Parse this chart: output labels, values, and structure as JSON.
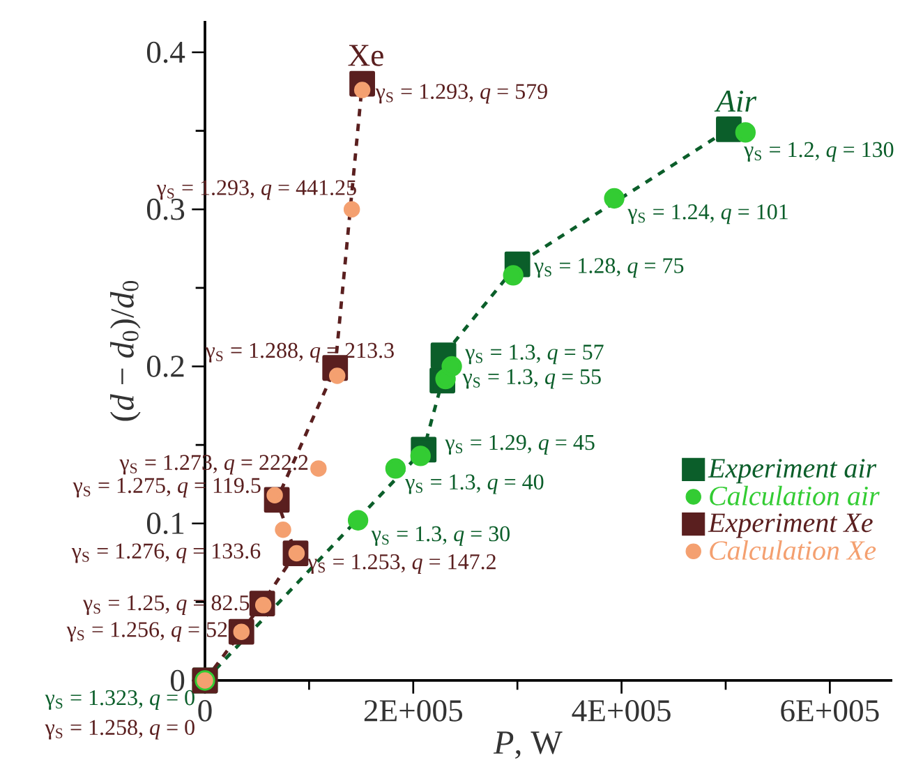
{
  "chart_data": {
    "type": "scatter",
    "xlabel": "*P*, W",
    "ylabel": "(*d* − *d*$_{0}$)/*d*$_{0}$",
    "xlim": [
      0,
      660000
    ],
    "ylim": [
      0,
      0.42
    ],
    "xticks": [
      0,
      {
        "value": 200000,
        "label": "2E+005"
      },
      {
        "value": 400000,
        "label": "4E+005"
      },
      {
        "value": 600000,
        "label": "6E+005"
      }
    ],
    "yticks": [
      0,
      0.1,
      0.2,
      0.3,
      0.4
    ],
    "legend": "right",
    "grid": false,
    "annotations": [
      "Xe",
      "Air"
    ],
    "series": [
      {
        "name": "Experiment air",
        "color": "#0b5e2a",
        "marker": "square",
        "line_style": "dashed",
        "x": [
          0,
          210000,
          228000,
          229000,
          300000,
          503000
        ],
        "values": [
          0,
          0.147,
          0.191,
          0.207,
          0.265,
          0.351
        ]
      },
      {
        "name": "Calculation air",
        "color": "#33cc33",
        "marker": "circle",
        "line_style": "none",
        "x": [
          0,
          147000,
          183000,
          207000,
          231000,
          237000,
          296000,
          393000,
          519000
        ],
        "values": [
          0,
          0.102,
          0.135,
          0.143,
          0.192,
          0.2,
          0.258,
          0.307,
          0.349
        ],
        "value_labels": [
          "γ$_{S}$ = 1.323, *q* = 0",
          "γ$_{S}$ = 1.3, *q* = 30",
          "γ$_{S}$ = 1.3, *q* = 40",
          "γ$_{S}$ = 1.29, *q* = 45",
          "γ$_{S}$ = 1.3, *q* = 55",
          "γ$_{S}$ = 1.3, *q* = 57",
          "γ$_{S}$ = 1.28, *q* = 75",
          "γ$_{S}$ = 1.24, *q* = 101",
          "γ$_{S}$ = 1.2, *q* = 130"
        ]
      },
      {
        "name": "Experiment Xe",
        "color": "#5a1f1f",
        "marker": "square",
        "line_style": "dashed",
        "x": [
          0,
          35000,
          55000,
          87000,
          69000,
          125000,
          151000
        ],
        "values": [
          0,
          0.031,
          0.049,
          0.081,
          0.115,
          0.199,
          0.38
        ]
      },
      {
        "name": "Calculation Xe",
        "color": "#f4a070",
        "marker": "circle",
        "line_style": "none",
        "x": [
          0,
          35000,
          56000,
          88000,
          75000,
          67000,
          109000,
          127000,
          141000,
          151000
        ],
        "values": [
          0,
          0.031,
          0.048,
          0.081,
          0.096,
          0.118,
          0.135,
          0.194,
          0.3,
          0.376
        ],
        "value_labels": [
          "γ$_{S}$ = 1.258, *q* = 0",
          "γ$_{S}$ = 1.256, *q* = 52",
          "γ$_{S}$ = 1.25, *q* = 82.5",
          "γ$_{S}$ = 1.276, *q* = 133.6",
          "γ$_{S}$ = 1.253, *q* = 147.2",
          "γ$_{S}$ = 1.275, *q* = 119.5",
          "γ$_{S}$ = 1.273, *q* = 222.2",
          "γ$_{S}$ = 1.288, *q* = 213.3",
          "γ$_{S}$ = 1.293, *q* = 441.25",
          "γ$_{S}$ = 1.293, *q* = 579"
        ]
      }
    ]
  }
}
